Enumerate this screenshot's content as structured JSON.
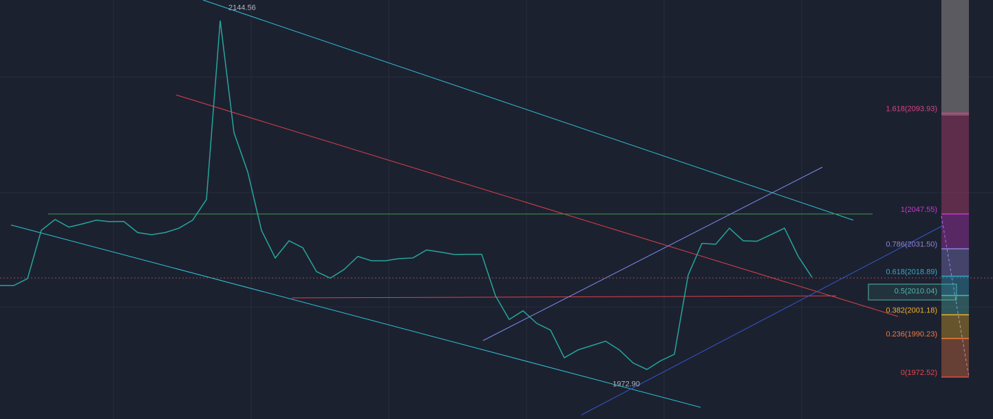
{
  "chart_data": {
    "type": "line",
    "categories": [
      null,
      null,
      null,
      null,
      null,
      null,
      null,
      null,
      null,
      null,
      null,
      null,
      null,
      null,
      null,
      null,
      null,
      null,
      null,
      null,
      null,
      null,
      null,
      null,
      null,
      null,
      null,
      null,
      null,
      null,
      null,
      null,
      null,
      null,
      null,
      null,
      null,
      null,
      null,
      null,
      null,
      null,
      null,
      null,
      null,
      null,
      null,
      null,
      null,
      null,
      null,
      null,
      null,
      null,
      null,
      null,
      null,
      null,
      null,
      null
    ],
    "series": [
      {
        "color": "#26a69a",
        "values": [
          2014.6,
          2014.6,
          2017.8,
          2040,
          2045,
          2041.5,
          2043,
          2044.7,
          2044,
          2044.1,
          2039,
          2038,
          2039,
          2041,
          2044.7,
          2054.2,
          2136.5,
          2085,
          2066.9,
          2040,
          2027.3,
          2035.2,
          2032,
          2021,
          2018,
          2022,
          2028,
          2026,
          2026,
          2027,
          2027.3,
          2031,
          2030,
          2028.9,
          2029,
          2029,
          2009.9,
          1999,
          2003,
          1997.2,
          1994.1,
          1981.4,
          1985,
          1987,
          1989,
          1985,
          1979,
          1976,
          1980,
          1983,
          2019.4,
          2034,
          2033.6,
          2041,
          2035.2,
          2035,
          2038,
          2041,
          2028,
          2018.4
        ]
      }
    ],
    "ylim": [
      1953.2,
      2146.0
    ],
    "annotations": [
      {
        "text": "2144.56",
        "value": 2144.56
      },
      {
        "text": "1972.90",
        "value": 1972.9
      }
    ],
    "fib_levels": [
      {
        "label": "1.618(2093.93)",
        "value": 2093.93,
        "color": "#d6457f"
      },
      {
        "label": "1(2047.55)",
        "value": 2047.55,
        "color": "#c837c8"
      },
      {
        "label": "0.786(2031.50)",
        "value": 2031.5,
        "color": "#8e83d8"
      },
      {
        "label": "0.618(2018.89)",
        "value": 2018.89,
        "color": "#36a9c9"
      },
      {
        "label": "0.5(2010.04)",
        "value": 2010.04,
        "color": "#4fb6a8"
      },
      {
        "label": "0.382(2001.18)",
        "value": 2001.18,
        "color": "#f0b429"
      },
      {
        "label": "0.236(1990.23)",
        "value": 1990.23,
        "color": "#f07a3c"
      },
      {
        "label": "0(1972.52)",
        "value": 1972.52,
        "color": "#e64848"
      }
    ]
  }
}
